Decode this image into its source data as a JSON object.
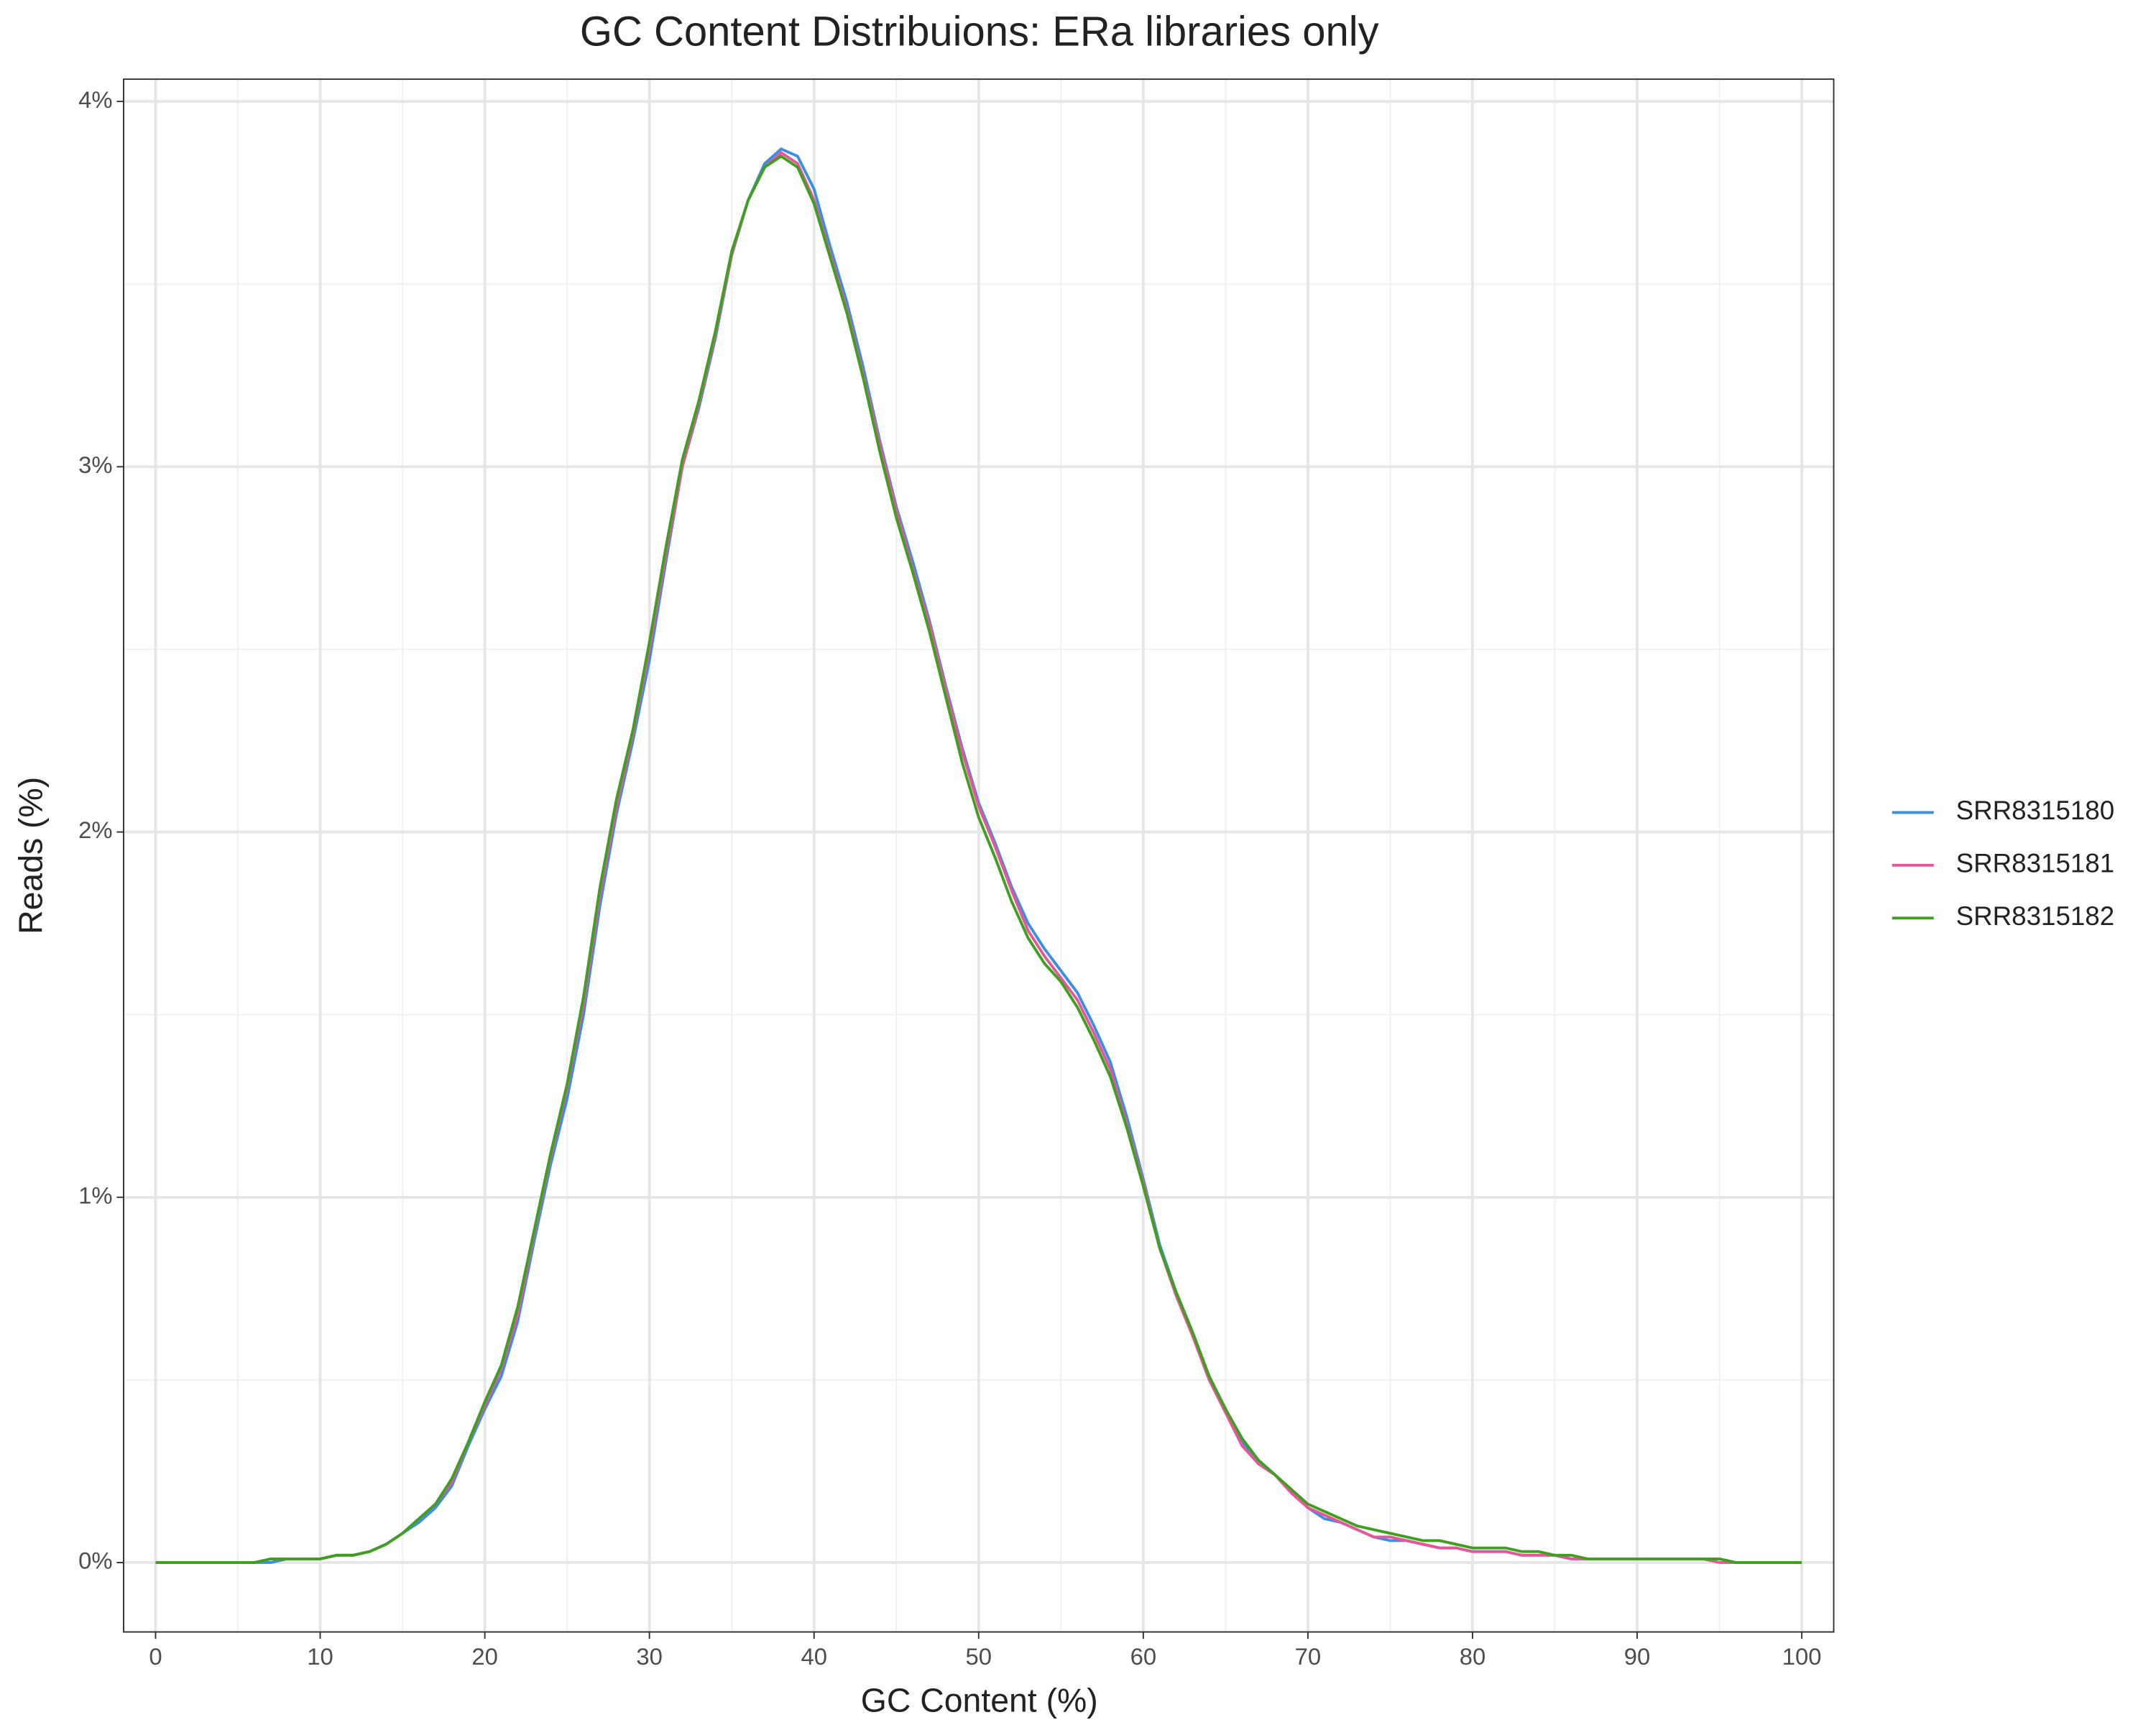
{
  "chart_data": {
    "type": "line",
    "title": "GC Content Distribuions: ERa libraries only",
    "x_label": "GC Content (%)",
    "y_label": "Reads (%)",
    "x": [
      0,
      1,
      2,
      3,
      4,
      5,
      6,
      7,
      8,
      9,
      10,
      11,
      12,
      13,
      14,
      15,
      16,
      17,
      18,
      19,
      20,
      21,
      22,
      23,
      24,
      25,
      26,
      27,
      28,
      29,
      30,
      31,
      32,
      33,
      34,
      35,
      36,
      37,
      38,
      39,
      40,
      41,
      42,
      43,
      44,
      45,
      46,
      47,
      48,
      49,
      50,
      51,
      52,
      53,
      54,
      55,
      56,
      57,
      58,
      59,
      60,
      61,
      62,
      63,
      64,
      65,
      66,
      67,
      68,
      69,
      70,
      71,
      72,
      73,
      74,
      75,
      76,
      77,
      78,
      79,
      80,
      81,
      82,
      83,
      84,
      85,
      86,
      87,
      88,
      89,
      90,
      91,
      92,
      93,
      94,
      95,
      96,
      97,
      98,
      99,
      100
    ],
    "series": [
      {
        "name": "SRR8315180",
        "color": "#3a8ee6",
        "values": [
          0,
          0,
          0,
          0,
          0,
          0,
          0,
          0,
          0.01,
          0.01,
          0.01,
          0.02,
          0.02,
          0.03,
          0.05,
          0.08,
          0.11,
          0.15,
          0.21,
          0.32,
          0.42,
          0.51,
          0.66,
          0.88,
          1.09,
          1.27,
          1.5,
          1.8,
          2.05,
          2.25,
          2.47,
          2.74,
          3.0,
          3.16,
          3.35,
          3.58,
          3.73,
          3.83,
          3.87,
          3.85,
          3.76,
          3.6,
          3.45,
          3.27,
          3.07,
          2.89,
          2.74,
          2.58,
          2.4,
          2.23,
          2.08,
          1.97,
          1.85,
          1.75,
          1.68,
          1.62,
          1.56,
          1.47,
          1.37,
          1.22,
          1.05,
          0.87,
          0.74,
          0.63,
          0.51,
          0.42,
          0.33,
          0.28,
          0.24,
          0.2,
          0.15,
          0.12,
          0.11,
          0.09,
          0.07,
          0.06,
          0.06,
          0.05,
          0.04,
          0.04,
          0.03,
          0.03,
          0.03,
          0.02,
          0.02,
          0.02,
          0.01,
          0.01,
          0.01,
          0.01,
          0.01,
          0.01,
          0.01,
          0.01,
          0.01,
          0.01,
          0,
          0,
          0,
          0,
          0
        ]
      },
      {
        "name": "SRR8315181",
        "color": "#e8559a",
        "values": [
          0,
          0,
          0,
          0,
          0,
          0,
          0,
          0.01,
          0.01,
          0.01,
          0.01,
          0.02,
          0.02,
          0.03,
          0.05,
          0.08,
          0.12,
          0.16,
          0.22,
          0.33,
          0.43,
          0.53,
          0.68,
          0.9,
          1.11,
          1.3,
          1.53,
          1.83,
          2.07,
          2.27,
          2.5,
          2.76,
          3.0,
          3.17,
          3.36,
          3.58,
          3.73,
          3.82,
          3.86,
          3.83,
          3.73,
          3.58,
          3.43,
          3.25,
          3.06,
          2.88,
          2.72,
          2.57,
          2.39,
          2.22,
          2.07,
          1.96,
          1.84,
          1.73,
          1.66,
          1.6,
          1.54,
          1.45,
          1.35,
          1.2,
          1.04,
          0.86,
          0.73,
          0.62,
          0.5,
          0.41,
          0.32,
          0.27,
          0.24,
          0.19,
          0.15,
          0.13,
          0.11,
          0.09,
          0.07,
          0.07,
          0.06,
          0.05,
          0.04,
          0.04,
          0.03,
          0.03,
          0.03,
          0.02,
          0.02,
          0.02,
          0.01,
          0.01,
          0.01,
          0.01,
          0.01,
          0.01,
          0.01,
          0.01,
          0.01,
          0,
          0,
          0,
          0,
          0,
          0
        ]
      },
      {
        "name": "SRR8315182",
        "color": "#3fa020",
        "values": [
          0,
          0,
          0,
          0,
          0,
          0,
          0,
          0.01,
          0.01,
          0.01,
          0.01,
          0.02,
          0.02,
          0.03,
          0.05,
          0.08,
          0.12,
          0.16,
          0.23,
          0.33,
          0.44,
          0.54,
          0.7,
          0.91,
          1.12,
          1.31,
          1.55,
          1.85,
          2.09,
          2.28,
          2.52,
          2.78,
          3.02,
          3.18,
          3.37,
          3.59,
          3.73,
          3.82,
          3.85,
          3.82,
          3.72,
          3.57,
          3.42,
          3.24,
          3.04,
          2.86,
          2.71,
          2.55,
          2.37,
          2.19,
          2.04,
          1.93,
          1.81,
          1.71,
          1.64,
          1.59,
          1.52,
          1.43,
          1.33,
          1.19,
          1.03,
          0.86,
          0.74,
          0.63,
          0.51,
          0.42,
          0.34,
          0.28,
          0.24,
          0.2,
          0.16,
          0.14,
          0.12,
          0.1,
          0.09,
          0.08,
          0.07,
          0.06,
          0.06,
          0.05,
          0.04,
          0.04,
          0.04,
          0.03,
          0.03,
          0.02,
          0.02,
          0.01,
          0.01,
          0.01,
          0.01,
          0.01,
          0.01,
          0.01,
          0.01,
          0.01,
          0,
          0,
          0,
          0,
          0
        ]
      }
    ],
    "xlim": [
      -1.94,
      101.94
    ],
    "ylim": [
      -0.19,
      4.061
    ],
    "xticks": [
      0,
      10,
      20,
      30,
      40,
      50,
      60,
      70,
      80,
      90,
      100
    ],
    "x_minor_ticks": [
      5,
      15,
      25,
      35,
      45,
      55,
      65,
      75,
      85,
      95
    ],
    "yticks": [
      {
        "value": 0,
        "label": "0%"
      },
      {
        "value": 1,
        "label": "1%"
      },
      {
        "value": 2,
        "label": "2%"
      },
      {
        "value": 3,
        "label": "3%"
      },
      {
        "value": 4,
        "label": "4%"
      }
    ],
    "y_minor_ticks": [
      0.5,
      1.5,
      2.5,
      3.5
    ],
    "grid": true,
    "legend": "right"
  }
}
